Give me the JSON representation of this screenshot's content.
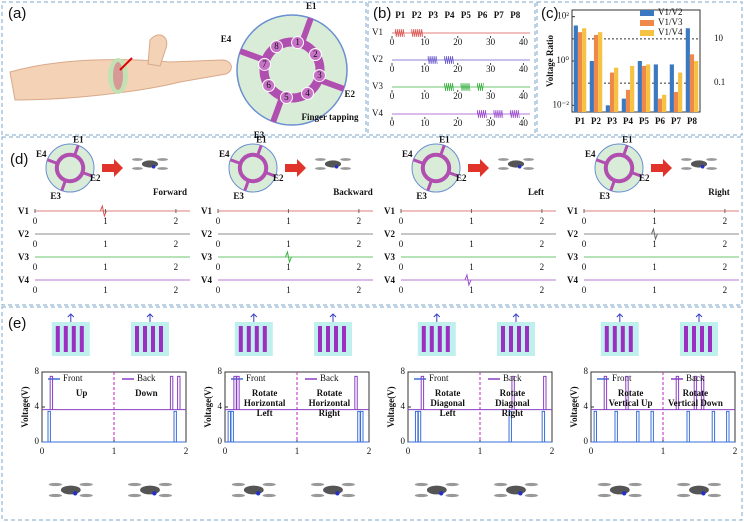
{
  "panel_a": {
    "label": "(a)",
    "electrodes": [
      "E1",
      "E2",
      "E3",
      "E4"
    ],
    "points": [
      "1",
      "2",
      "3",
      "4",
      "5",
      "6",
      "7",
      "8"
    ],
    "caption": "Finger tapping"
  },
  "chart_data": [
    {
      "type": "burst",
      "label": "(b)",
      "categories": [
        "P1",
        "P2",
        "P3",
        "P4",
        "P5",
        "P6",
        "P7",
        "P8"
      ],
      "xlim": [
        0,
        42
      ],
      "xticks": [
        0,
        10,
        20,
        30,
        40
      ],
      "series": [
        {
          "name": "V1",
          "color": "#d9534f",
          "bursts": [
            [
              1,
              4
            ],
            [
              6,
              9.5
            ]
          ]
        },
        {
          "name": "V2",
          "color": "#6a5acd",
          "bursts": [
            [
              11,
              14
            ],
            [
              16,
              19
            ]
          ]
        },
        {
          "name": "V3",
          "color": "#3cb043",
          "bursts": [
            [
              16,
              19
            ],
            [
              21,
              24
            ],
            [
              26,
              28
            ]
          ]
        },
        {
          "name": "V4",
          "color": "#9b4dca",
          "bursts": [
            [
              26,
              29
            ],
            [
              31,
              34
            ],
            [
              36,
              39
            ]
          ]
        }
      ]
    },
    {
      "type": "bar",
      "label": "(c)",
      "log_scale": true,
      "ylabel": "Voltage Ratio",
      "categories": [
        "P1",
        "P2",
        "P3",
        "P4",
        "P5",
        "P6",
        "P7",
        "P8"
      ],
      "ylim": [
        0.005,
        200
      ],
      "yticks": [
        {
          "value": 100,
          "label": "10²"
        },
        {
          "value": 1,
          "label": "10⁰"
        },
        {
          "value": 0.01,
          "label": "10⁻²"
        }
      ],
      "reference_lines": [
        10,
        0.1
      ],
      "legend": "upper right",
      "series": [
        {
          "name": "V1/V2",
          "color": "#3a78c2",
          "values": [
            40,
            1,
            0.01,
            0.02,
            1,
            0.7,
            0.7,
            30
          ]
        },
        {
          "name": "V1/V3",
          "color": "#f0884b",
          "values": [
            20,
            15,
            0.3,
            0.05,
            0.6,
            0.02,
            0.04,
            2
          ]
        },
        {
          "name": "V1/V4",
          "color": "#f5c242",
          "values": [
            30,
            20,
            0.5,
            0.6,
            0.7,
            0.03,
            0.3,
            1
          ]
        }
      ]
    },
    {
      "type": "spike",
      "label": "(d)",
      "title": "Forward",
      "xlim": [
        0,
        2.2
      ],
      "xticks": [
        0,
        1,
        2
      ],
      "series": [
        {
          "name": "V1",
          "color": "#d9534f",
          "spikes": [
            0.97
          ]
        },
        {
          "name": "V2",
          "color": "#666666",
          "spikes": []
        },
        {
          "name": "V3",
          "color": "#3cb043",
          "spikes": []
        },
        {
          "name": "V4",
          "color": "#9b4dca",
          "spikes": []
        }
      ]
    },
    {
      "type": "spike",
      "title": "Backward",
      "xlim": [
        0,
        2.2
      ],
      "xticks": [
        0,
        1,
        2
      ],
      "series": [
        {
          "name": "V1",
          "color": "#d9534f",
          "spikes": []
        },
        {
          "name": "V2",
          "color": "#666666",
          "spikes": []
        },
        {
          "name": "V3",
          "color": "#3cb043",
          "spikes": [
            1.0
          ]
        },
        {
          "name": "V4",
          "color": "#9b4dca",
          "spikes": []
        }
      ]
    },
    {
      "type": "spike",
      "title": "Left",
      "xlim": [
        0,
        2.2
      ],
      "xticks": [
        0,
        1,
        2
      ],
      "series": [
        {
          "name": "V1",
          "color": "#d9534f",
          "spikes": []
        },
        {
          "name": "V2",
          "color": "#666666",
          "spikes": []
        },
        {
          "name": "V3",
          "color": "#3cb043",
          "spikes": []
        },
        {
          "name": "V4",
          "color": "#9b4dca",
          "spikes": [
            0.95
          ]
        }
      ]
    },
    {
      "type": "spike",
      "title": "Right",
      "xlim": [
        0,
        2.2
      ],
      "xticks": [
        0,
        1,
        2
      ],
      "series": [
        {
          "name": "V1",
          "color": "#d9534f",
          "spikes": []
        },
        {
          "name": "V2",
          "color": "#666666",
          "spikes": [
            1.0
          ]
        },
        {
          "name": "V3",
          "color": "#3cb043",
          "spikes": []
        },
        {
          "name": "V4",
          "color": "#9b4dca",
          "spikes": []
        }
      ]
    },
    {
      "type": "pulse",
      "label": "(e)",
      "ylabel": "Voltage(V)",
      "ylim": [
        0,
        8
      ],
      "yticks": [
        0,
        4,
        8
      ],
      "xlim": [
        0,
        2
      ],
      "xticks": [
        0,
        1,
        2
      ],
      "divider": 1,
      "annotations": [
        [
          "Up"
        ],
        [
          "Down"
        ]
      ],
      "series": [
        {
          "name": "Front",
          "color": "#3a6fd8",
          "base": 0,
          "peak": 3.5,
          "pulses": [
            0.1,
            1.85
          ]
        },
        {
          "name": "Back",
          "color": "#8a3fc2",
          "base": 3.7,
          "peak": 7.5,
          "pulses": [
            0.13,
            1.8,
            1.9
          ]
        }
      ]
    },
    {
      "type": "pulse",
      "ylabel": "Voltage(V)",
      "ylim": [
        0,
        8
      ],
      "yticks": [
        0,
        4,
        8
      ],
      "xlim": [
        0,
        2
      ],
      "xticks": [
        0,
        1,
        2
      ],
      "divider": 1,
      "annotations": [
        [
          "Rotate",
          "Horizontal",
          "Left"
        ],
        [
          "Rotate",
          "Horizontal",
          "Right"
        ]
      ],
      "series": [
        {
          "name": "Front",
          "color": "#3a6fd8",
          "base": 0,
          "peak": 3.5,
          "pulses": [
            0.06,
            0.1,
            1.86,
            1.9
          ]
        },
        {
          "name": "Back",
          "color": "#8a3fc2",
          "base": 3.7,
          "peak": 7.5,
          "pulses": [
            0.14,
            0.18,
            1.82
          ]
        }
      ]
    },
    {
      "type": "pulse",
      "ylabel": "Voltage(V)",
      "ylim": [
        0,
        8
      ],
      "yticks": [
        0,
        4,
        8
      ],
      "xlim": [
        0,
        2
      ],
      "xticks": [
        0,
        1,
        2
      ],
      "divider": 1,
      "annotations": [
        [
          "Rotate",
          "Diagonal",
          "Left"
        ],
        [
          "Rotate",
          "Diagonal",
          "Right"
        ]
      ],
      "series": [
        {
          "name": "Front",
          "color": "#3a6fd8",
          "base": 0,
          "peak": 3.5,
          "pulses": [
            0.12,
            0.16,
            1.42,
            1.88
          ]
        },
        {
          "name": "Back",
          "color": "#8a3fc2",
          "base": 3.7,
          "peak": 7.5,
          "pulses": [
            0.2,
            1.46,
            1.9
          ]
        }
      ]
    },
    {
      "type": "pulse",
      "ylabel": "Voltage(V)",
      "ylim": [
        0,
        8
      ],
      "yticks": [
        0,
        4,
        8
      ],
      "xlim": [
        0,
        2
      ],
      "xticks": [
        0,
        1,
        2
      ],
      "divider": 1,
      "annotations": [
        [
          "Rotate",
          "Vertical Up"
        ],
        [
          "Rotate",
          "Vertical Down"
        ]
      ],
      "series": [
        {
          "name": "Front",
          "color": "#3a6fd8",
          "base": 0,
          "peak": 3.5,
          "pulses": [
            0.06,
            0.35,
            0.65,
            0.85,
            1.35,
            1.7,
            1.9
          ]
        },
        {
          "name": "Back",
          "color": "#8a3fc2",
          "base": 3.7,
          "peak": 7.5,
          "pulses": [
            0.2,
            0.5,
            1.2,
            1.45,
            1.55
          ]
        }
      ]
    }
  ]
}
